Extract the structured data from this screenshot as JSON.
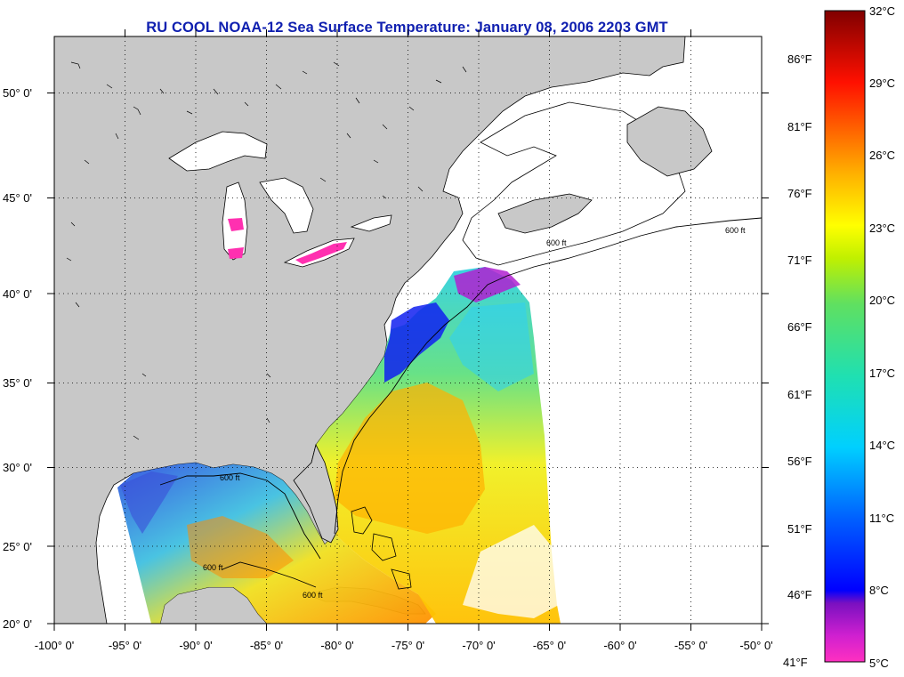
{
  "title": "RU COOL  NOAA-12  Sea Surface Temperature:  January 08, 2006 2203 GMT",
  "map": {
    "lon_range": [
      -100,
      -50
    ],
    "lat_range": [
      20,
      52.3
    ],
    "x_ticks": [
      {
        "value": -100,
        "label": "-100° 0'"
      },
      {
        "value": -95,
        "label": "-95° 0'"
      },
      {
        "value": -90,
        "label": "-90° 0'"
      },
      {
        "value": -85,
        "label": "-85° 0'"
      },
      {
        "value": -80,
        "label": "-80° 0'"
      },
      {
        "value": -75,
        "label": "-75° 0'"
      },
      {
        "value": -70,
        "label": "-70° 0'"
      },
      {
        "value": -65,
        "label": "-65° 0'"
      },
      {
        "value": -60,
        "label": "-60° 0'"
      },
      {
        "value": -55,
        "label": "-55° 0'"
      },
      {
        "value": -50,
        "label": "-50° 0'"
      }
    ],
    "y_ticks": [
      {
        "value": 50,
        "label": "50° 0'"
      },
      {
        "value": 45,
        "label": "45° 0'"
      },
      {
        "value": 40,
        "label": "40° 0'"
      },
      {
        "value": 35,
        "label": "35° 0'"
      },
      {
        "value": 30,
        "label": "30° 0'"
      },
      {
        "value": 25,
        "label": "25° 0'"
      },
      {
        "value": 20,
        "label": "20° 0'"
      }
    ],
    "grid": "dotted",
    "contour_labels": [
      "600 ft",
      "600 ft",
      "600 ft",
      "600 ft",
      "600 ft"
    ],
    "colors": {
      "land": "#c8c8c8",
      "no_data_water": "#ffffff",
      "coastline": "#000000"
    }
  },
  "colorbar": {
    "celsius_labels": [
      "32°C",
      "29°C",
      "26°C",
      "23°C",
      "20°C",
      "17°C",
      "14°C",
      "11°C",
      "8°C",
      "5°C"
    ],
    "fahrenheit_labels": [
      "86°F",
      "81°F",
      "76°F",
      "71°F",
      "66°F",
      "61°F",
      "56°F",
      "51°F",
      "46°F",
      "41°F"
    ],
    "min_c": 5,
    "max_c": 32,
    "palette": [
      "#ff30c0",
      "#7a10c0",
      "#0000ff",
      "#00a0ff",
      "#00e0e0",
      "#40e080",
      "#c0f000",
      "#ffff00",
      "#ffa000",
      "#ff5000",
      "#ff0000",
      "#800000"
    ]
  }
}
